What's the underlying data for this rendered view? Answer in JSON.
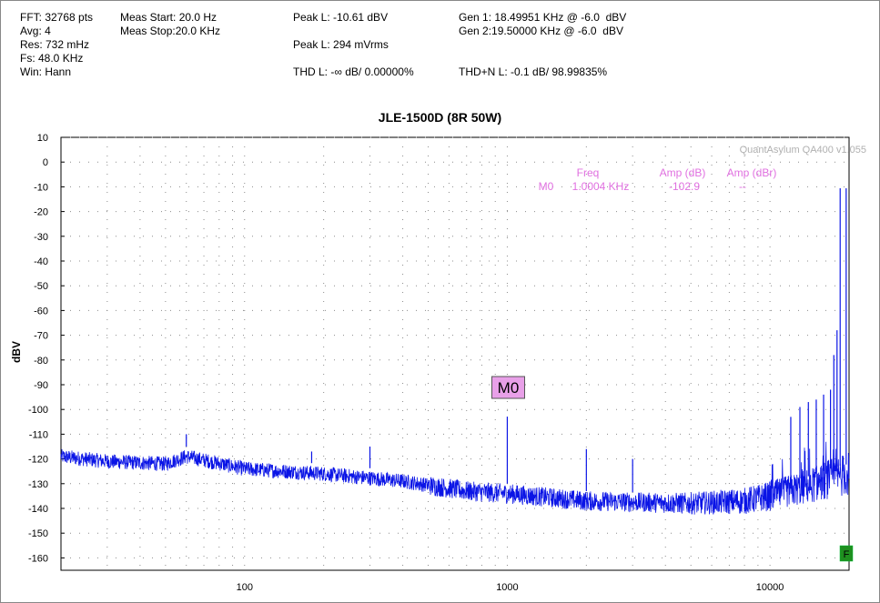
{
  "stats": {
    "fft": "FFT: 32768 pts",
    "avg": "Avg: 4",
    "res": "Res: 732 mHz",
    "fs": "Fs: 48.0 KHz",
    "win": "Win: Hann",
    "meas_start": "Meas Start: 20.0 Hz",
    "meas_stop": "Meas Stop:20.0 KHz",
    "peak_l_dbv": "Peak L: -10.61 dBV",
    "peak_l_mvrms": "Peak L: 294 mVrms",
    "thd_l": "THD L: -∞ dB/ 0.00000%",
    "gen1": "Gen 1: 18.49951 KHz @ -6.0  dBV",
    "gen2": "Gen 2:19.50000 KHz @ -6.0  dBV",
    "thdn_l": "THD+N L: -0.1 dB/ 98.99835%"
  },
  "watermark": "QuantAsylum QA400 v1.055",
  "marker_table": {
    "headers": [
      "Freq",
      "Amp (dB)",
      "Amp (dBr)"
    ],
    "row": {
      "name": "M0",
      "freq": "1.0004 KHz",
      "amp_db": "-102.9",
      "amp_dbr": "--"
    }
  },
  "marker_label": "M0",
  "f_badge": "F",
  "colors": {
    "trace": "#0a14e6",
    "marker_text": "#e070e0",
    "marker_box": "#e8a0e8",
    "f_badge": "#1f8f1f",
    "grid": "#8c8c8c"
  },
  "chart_data": {
    "type": "line",
    "title": "JLE-1500D (8R 50W)",
    "xlabel": "",
    "ylabel": "dBV",
    "x_scale": "log",
    "xlim": [
      20,
      20000
    ],
    "ylim": [
      -165,
      10
    ],
    "x_ticks": [
      100,
      1000,
      10000
    ],
    "x_tick_labels": [
      "100",
      "1000",
      "10000"
    ],
    "y_ticks": [
      10,
      0,
      -10,
      -20,
      -30,
      -40,
      -50,
      -60,
      -70,
      -80,
      -90,
      -100,
      -110,
      -120,
      -130,
      -140,
      -150,
      -160
    ],
    "y_tick_labels": [
      "10",
      "0",
      "-10",
      "-20",
      "-30",
      "-40",
      "-50",
      "-60",
      "-70",
      "-80",
      "-90",
      "-100",
      "-110",
      "-120",
      "-130",
      "-140",
      "-150",
      "-160"
    ],
    "grid": true,
    "noise_floor": [
      [
        20,
        -119
      ],
      [
        30,
        -121
      ],
      [
        50,
        -122
      ],
      [
        60,
        -119
      ],
      [
        100,
        -124
      ],
      [
        200,
        -126
      ],
      [
        400,
        -129
      ],
      [
        700,
        -133
      ],
      [
        1000,
        -134
      ],
      [
        2000,
        -137
      ],
      [
        5000,
        -138
      ],
      [
        8000,
        -137
      ],
      [
        10000,
        -135
      ],
      [
        14000,
        -131
      ],
      [
        18000,
        -127
      ],
      [
        20000,
        -126
      ]
    ],
    "peaks": [
      {
        "x": 60,
        "y": -110
      },
      {
        "x": 180,
        "y": -117
      },
      {
        "x": 300,
        "y": -115
      },
      {
        "x": 1000,
        "y": -102.9
      },
      {
        "x": 2000,
        "y": -116
      },
      {
        "x": 3000,
        "y": -120
      },
      {
        "x": 12000,
        "y": -103
      },
      {
        "x": 13000,
        "y": -99
      },
      {
        "x": 14000,
        "y": -97
      },
      {
        "x": 15000,
        "y": -96
      },
      {
        "x": 16000,
        "y": -94
      },
      {
        "x": 17000,
        "y": -92
      },
      {
        "x": 17500,
        "y": -78
      },
      {
        "x": 18000,
        "y": -68
      },
      {
        "x": 18500,
        "y": -10.6
      },
      {
        "x": 19500,
        "y": -10.6
      }
    ],
    "marker": {
      "name": "M0",
      "x": 1000.4,
      "y": -102.9
    }
  }
}
